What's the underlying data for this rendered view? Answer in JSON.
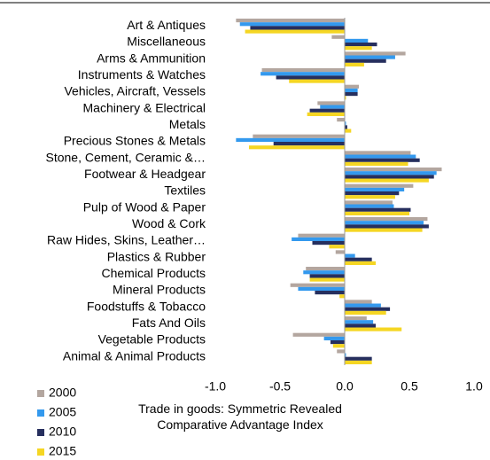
{
  "chart_data": {
    "type": "barh",
    "x_label": "Trade in goods: Symmetric Revealed Comparative Advantage Index",
    "categories": [
      "Art & Antiques",
      "Miscellaneous",
      "Arms & Ammunition",
      "Instruments & Watches",
      "Vehicles, Aircraft, Vessels",
      "Machinery & Electrical",
      "Metals",
      "Precious Stones & Metals",
      "Stone, Cement, Ceramic &…",
      "Footwear & Headgear",
      "Textiles",
      "Pulp of Wood & Paper",
      "Wood & Cork",
      "Raw Hides, Skins, Leather…",
      "Plastics & Rubber",
      "Chemical Products",
      "Mineral Products",
      "Foodstuffs & Tobacco",
      "Fats And Oils",
      "Vegetable Products",
      "Animal & Animal Products"
    ],
    "series": [
      {
        "name": "2000",
        "color": "#b3a69f",
        "values": [
          -0.84,
          -0.1,
          0.47,
          -0.64,
          0.11,
          -0.21,
          -0.06,
          -0.71,
          0.51,
          0.75,
          0.53,
          0.37,
          0.64,
          -0.36,
          -0.07,
          -0.3,
          -0.42,
          0.21,
          0.17,
          -0.4,
          -0.06
        ]
      },
      {
        "name": "2005",
        "color": "#3399ee",
        "values": [
          -0.81,
          0.18,
          0.39,
          -0.65,
          0.1,
          -0.19,
          0.01,
          -0.84,
          0.55,
          0.71,
          0.46,
          0.38,
          0.61,
          -0.41,
          0.08,
          -0.32,
          -0.36,
          0.28,
          0.22,
          -0.16,
          0.01
        ]
      },
      {
        "name": "2010",
        "color": "#262f5e",
        "values": [
          -0.73,
          0.25,
          0.32,
          -0.53,
          0.1,
          -0.27,
          0.02,
          -0.55,
          0.58,
          0.69,
          0.42,
          0.51,
          0.65,
          -0.25,
          0.21,
          -0.27,
          -0.23,
          0.35,
          0.24,
          -0.11,
          0.21
        ]
      },
      {
        "name": "2015",
        "color": "#f5d623",
        "values": [
          -0.77,
          0.21,
          0.15,
          -0.43,
          0.01,
          -0.29,
          0.05,
          -0.74,
          0.49,
          0.65,
          0.39,
          0.5,
          0.6,
          -0.12,
          0.24,
          -0.27,
          -0.04,
          0.32,
          0.44,
          -0.09,
          0.21
        ]
      }
    ],
    "xlim": [
      -1.0,
      1.0
    ],
    "xticks": [
      {
        "value": -1.0,
        "label": "-1.0"
      },
      -0.5,
      {
        "value": 0,
        "label": "0.0"
      },
      0.5,
      {
        "value": 1.0,
        "label": "1.0"
      }
    ],
    "legend": "bottom-left"
  }
}
